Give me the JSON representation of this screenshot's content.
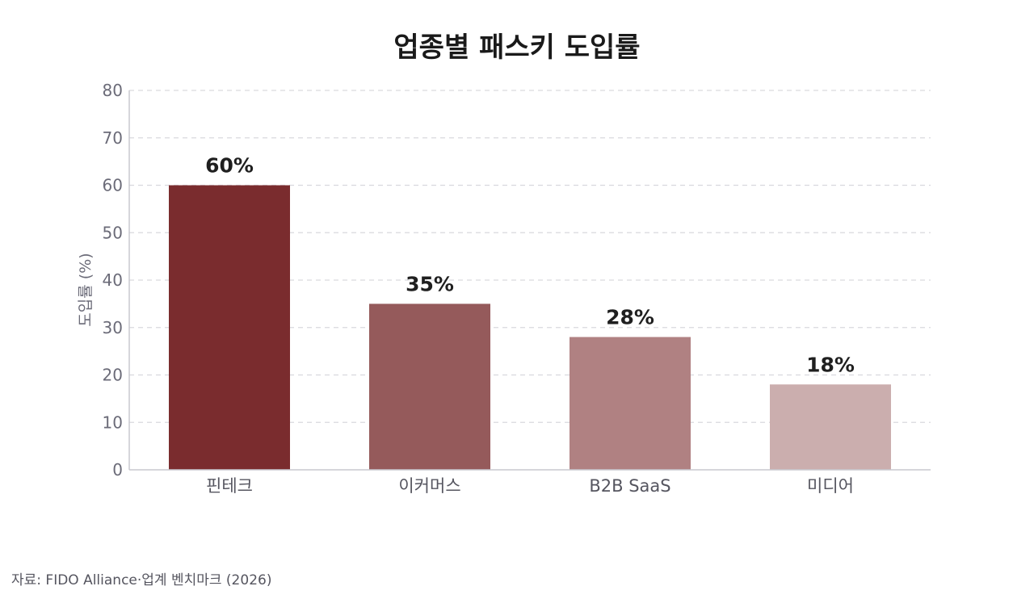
{
  "chart_data": {
    "type": "bar",
    "title": "업종별 패스키 도입률",
    "ylabel": "도입률 (%)",
    "xlabel": "",
    "categories": [
      "핀테크",
      "이커머스",
      "B2B SaaS",
      "미디어"
    ],
    "values": [
      60,
      35,
      28,
      18
    ],
    "value_labels": [
      "60%",
      "35%",
      "28%",
      "18%"
    ],
    "colors": [
      "#7a2c2e",
      "#955a5b",
      "#b08182",
      "#cbaeae"
    ],
    "ylim": [
      0,
      80
    ],
    "yticks": [
      0,
      10,
      20,
      30,
      40,
      50,
      60,
      70,
      80
    ],
    "ytick_labels": [
      "0",
      "10",
      "20",
      "30",
      "40",
      "50",
      "60",
      "70",
      "80"
    ],
    "grid": true,
    "legend": "none"
  },
  "source": "자료: FIDO Alliance·업계 벤치마크 (2026)"
}
